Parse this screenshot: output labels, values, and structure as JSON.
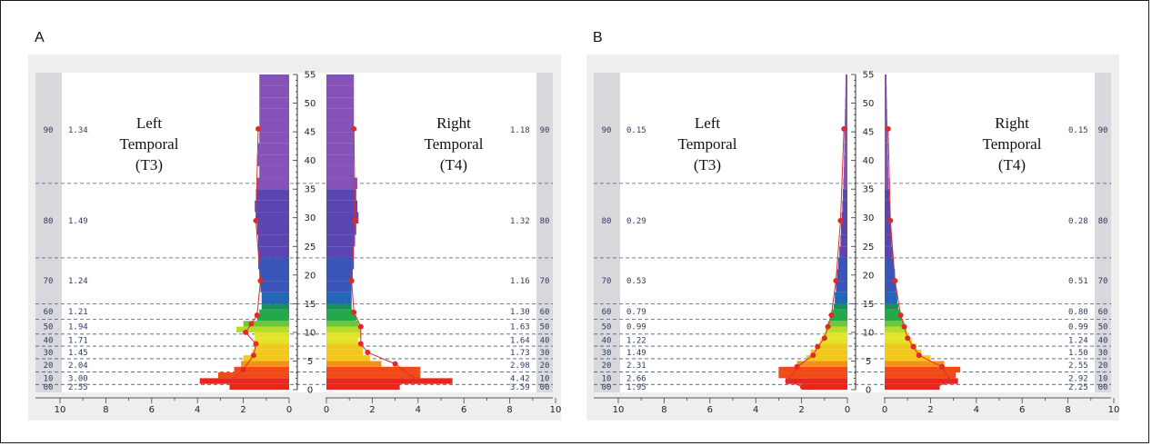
{
  "panels": [
    {
      "letter": "A"
    },
    {
      "letter": "B"
    }
  ],
  "chart_data": [
    {
      "type": "bar",
      "panel": "A",
      "orientation": "horizontal-mirrored",
      "y_axis": {
        "range": [
          0,
          55
        ],
        "tick_labels": [
          "0",
          "5",
          "10",
          "15",
          "20",
          "25",
          "30",
          "35",
          "40",
          "45",
          "50",
          "55"
        ]
      },
      "x_axis": {
        "range": [
          0,
          10
        ],
        "tick_labels": [
          "10",
          "8",
          "6",
          "4",
          "2",
          "0",
          "0",
          "2",
          "4",
          "6",
          "8",
          "10"
        ]
      },
      "percentile_bands": [
        {
          "label": "90",
          "y_from": 36,
          "y_to": 55
        },
        {
          "label": "80",
          "y_from": 23,
          "y_to": 36
        },
        {
          "label": "70",
          "y_from": 15,
          "y_to": 23
        },
        {
          "label": "60",
          "y_from": 12.3,
          "y_to": 15
        },
        {
          "label": "50",
          "y_from": 9.7,
          "y_to": 12.3
        },
        {
          "label": "40",
          "y_from": 7.6,
          "y_to": 9.7
        },
        {
          "label": "30",
          "y_from": 5.4,
          "y_to": 7.6
        },
        {
          "label": "20",
          "y_from": 3.1,
          "y_to": 5.4
        },
        {
          "label": "10",
          "y_from": 0.9,
          "y_to": 3.1
        },
        {
          "label": "00",
          "y_from": 0,
          "y_to": 0.9
        }
      ],
      "sides": [
        {
          "side": "left",
          "label_lines": [
            "Left",
            "Temporal",
            "(T3)"
          ],
          "band_values": [
            "1.34",
            "1.49",
            "1.24",
            "1.21",
            "1.94",
            "1.71",
            "1.45",
            "2.04",
            "3.00",
            "2.55"
          ],
          "bars": [
            [
              0.5,
              2.6
            ],
            [
              1.5,
              3.9
            ],
            [
              2.5,
              3.1
            ],
            [
              3.5,
              2.4
            ],
            [
              4.5,
              2.1
            ],
            [
              5.5,
              2.0
            ],
            [
              6.5,
              1.6
            ],
            [
              7.5,
              1.5
            ],
            [
              8.5,
              1.5
            ],
            [
              9.5,
              1.5
            ],
            [
              10.5,
              2.3
            ],
            [
              11.5,
              2.0
            ],
            [
              12.5,
              1.4
            ],
            [
              13.5,
              1.3
            ],
            [
              14.5,
              1.2
            ],
            [
              16,
              1.2
            ],
            [
              18,
              1.25
            ],
            [
              20,
              1.3
            ],
            [
              22,
              1.35
            ],
            [
              24,
              1.35
            ],
            [
              26,
              1.35
            ],
            [
              28,
              1.4
            ],
            [
              30,
              1.45
            ],
            [
              32,
              1.5
            ],
            [
              34,
              1.45
            ],
            [
              36,
              1.4
            ],
            [
              38,
              1.3
            ],
            [
              40,
              1.4
            ],
            [
              42,
              1.35
            ],
            [
              44,
              1.3
            ],
            [
              46,
              1.3
            ],
            [
              48,
              1.3
            ],
            [
              50,
              1.3
            ],
            [
              52,
              1.3
            ],
            [
              54,
              1.3
            ]
          ],
          "points": [
            [
              1.5,
              2.55
            ],
            [
              3.5,
              2.0
            ],
            [
              6,
              1.55
            ],
            [
              8,
              1.45
            ],
            [
              10,
              1.9
            ],
            [
              11.5,
              1.65
            ],
            [
              13,
              1.4
            ],
            [
              19,
              1.25
            ],
            [
              29.5,
              1.45
            ],
            [
              45.5,
              1.35
            ]
          ]
        },
        {
          "side": "right",
          "label_lines": [
            "Right",
            "Temporal",
            "(T4)"
          ],
          "band_values": [
            "1.18",
            "1.32",
            "1.16",
            "1.30",
            "1.63",
            "1.64",
            "1.73",
            "2.98",
            "4.42",
            "3.59"
          ],
          "bars": [
            [
              0.5,
              3.2
            ],
            [
              1.5,
              5.5
            ],
            [
              2.5,
              4.1
            ],
            [
              3.5,
              4.1
            ],
            [
              4.5,
              2.4
            ],
            [
              5.5,
              1.9
            ],
            [
              6.5,
              1.6
            ],
            [
              7.5,
              1.6
            ],
            [
              8.5,
              1.4
            ],
            [
              9.5,
              1.5
            ],
            [
              10.5,
              1.5
            ],
            [
              11.5,
              1.4
            ],
            [
              12.5,
              1.3
            ],
            [
              13.5,
              1.2
            ],
            [
              14.5,
              1.1
            ],
            [
              16,
              1.1
            ],
            [
              18,
              1.1
            ],
            [
              20,
              1.15
            ],
            [
              22,
              1.2
            ],
            [
              24,
              1.2
            ],
            [
              26,
              1.25
            ],
            [
              28,
              1.3
            ],
            [
              30,
              1.4
            ],
            [
              32,
              1.35
            ],
            [
              34,
              1.3
            ],
            [
              36,
              1.35
            ],
            [
              38,
              1.2
            ],
            [
              40,
              1.2
            ],
            [
              42,
              1.2
            ],
            [
              44,
              1.2
            ],
            [
              46,
              1.2
            ],
            [
              48,
              1.2
            ],
            [
              50,
              1.2
            ],
            [
              52,
              1.2
            ],
            [
              54,
              1.2
            ]
          ],
          "points": [
            [
              1.5,
              4.0
            ],
            [
              4.5,
              3.0
            ],
            [
              6.5,
              1.8
            ],
            [
              8,
              1.5
            ],
            [
              11,
              1.5
            ],
            [
              13.5,
              1.2
            ],
            [
              19,
              1.1
            ],
            [
              29.5,
              1.25
            ],
            [
              45.5,
              1.2
            ]
          ]
        }
      ]
    },
    {
      "type": "bar",
      "panel": "B",
      "orientation": "horizontal-mirrored",
      "y_axis": {
        "range": [
          0,
          55
        ],
        "tick_labels": [
          "0",
          "5",
          "10",
          "15",
          "20",
          "25",
          "30",
          "35",
          "40",
          "45",
          "50",
          "55"
        ]
      },
      "x_axis": {
        "range": [
          0,
          10
        ],
        "tick_labels": [
          "10",
          "8",
          "6",
          "4",
          "2",
          "0",
          "0",
          "2",
          "4",
          "6",
          "8",
          "10"
        ]
      },
      "percentile_bands": [
        {
          "label": "90",
          "y_from": 36,
          "y_to": 55
        },
        {
          "label": "80",
          "y_from": 23,
          "y_to": 36
        },
        {
          "label": "70",
          "y_from": 15,
          "y_to": 23
        },
        {
          "label": "60",
          "y_from": 12.3,
          "y_to": 15
        },
        {
          "label": "50",
          "y_from": 9.7,
          "y_to": 12.3
        },
        {
          "label": "40",
          "y_from": 7.6,
          "y_to": 9.7
        },
        {
          "label": "30",
          "y_from": 5.4,
          "y_to": 7.6
        },
        {
          "label": "20",
          "y_from": 3.1,
          "y_to": 5.4
        },
        {
          "label": "10",
          "y_from": 0.9,
          "y_to": 3.1
        },
        {
          "label": "00",
          "y_from": 0,
          "y_to": 0.9
        }
      ],
      "sides": [
        {
          "side": "left",
          "label_lines": [
            "Left",
            "Temporal",
            "(T3)"
          ],
          "band_values": [
            "0.15",
            "0.29",
            "0.53",
            "0.79",
            "0.99",
            "1.22",
            "1.49",
            "2.31",
            "2.66",
            "1.95"
          ],
          "bars": [
            [
              0.5,
              2.0
            ],
            [
              1.5,
              2.7
            ],
            [
              2.5,
              3.0
            ],
            [
              3.5,
              3.0
            ],
            [
              4.5,
              2.2
            ],
            [
              5.5,
              1.8
            ],
            [
              6.5,
              1.6
            ],
            [
              7.5,
              1.4
            ],
            [
              8.5,
              1.2
            ],
            [
              9.5,
              1.05
            ],
            [
              10.5,
              0.95
            ],
            [
              11.5,
              0.85
            ],
            [
              12.5,
              0.75
            ],
            [
              13.5,
              0.65
            ],
            [
              14.5,
              0.6
            ],
            [
              16,
              0.55
            ],
            [
              18,
              0.5
            ],
            [
              20,
              0.45
            ],
            [
              22,
              0.4
            ],
            [
              24,
              0.35
            ],
            [
              26,
              0.3
            ],
            [
              28,
              0.28
            ],
            [
              30,
              0.25
            ],
            [
              32,
              0.22
            ],
            [
              34,
              0.2
            ],
            [
              36,
              0.18
            ],
            [
              38,
              0.16
            ],
            [
              40,
              0.15
            ],
            [
              42,
              0.14
            ],
            [
              44,
              0.13
            ],
            [
              46,
              0.12
            ],
            [
              48,
              0.11
            ],
            [
              50,
              0.1
            ],
            [
              52,
              0.09
            ],
            [
              54,
              0.08
            ]
          ],
          "points": [
            [
              0.5,
              1.95
            ],
            [
              1.5,
              2.6
            ],
            [
              4,
              2.2
            ],
            [
              6,
              1.5
            ],
            [
              7.5,
              1.3
            ],
            [
              9,
              1.0
            ],
            [
              11,
              0.85
            ],
            [
              13,
              0.7
            ],
            [
              19,
              0.5
            ],
            [
              29.5,
              0.3
            ],
            [
              45.5,
              0.15
            ]
          ]
        },
        {
          "side": "right",
          "label_lines": [
            "Right",
            "Temporal",
            "(T4)"
          ],
          "band_values": [
            "0.15",
            "0.28",
            "0.51",
            "0.80",
            "0.99",
            "1.24",
            "1.50",
            "2.55",
            "2.92",
            "2.25"
          ],
          "bars": [
            [
              0.5,
              2.4
            ],
            [
              1.5,
              3.2
            ],
            [
              2.5,
              3.1
            ],
            [
              3.5,
              3.3
            ],
            [
              4.5,
              2.6
            ],
            [
              5.5,
              2.0
            ],
            [
              6.5,
              1.6
            ],
            [
              7.5,
              1.4
            ],
            [
              8.5,
              1.2
            ],
            [
              9.5,
              1.05
            ],
            [
              10.5,
              0.95
            ],
            [
              11.5,
              0.85
            ],
            [
              12.5,
              0.75
            ],
            [
              13.5,
              0.65
            ],
            [
              14.5,
              0.6
            ],
            [
              16,
              0.55
            ],
            [
              18,
              0.5
            ],
            [
              20,
              0.45
            ],
            [
              22,
              0.4
            ],
            [
              24,
              0.35
            ],
            [
              26,
              0.3
            ],
            [
              28,
              0.28
            ],
            [
              30,
              0.25
            ],
            [
              32,
              0.22
            ],
            [
              34,
              0.2
            ],
            [
              36,
              0.18
            ],
            [
              38,
              0.16
            ],
            [
              40,
              0.15
            ],
            [
              42,
              0.14
            ],
            [
              44,
              0.13
            ],
            [
              46,
              0.12
            ],
            [
              48,
              0.11
            ],
            [
              50,
              0.1
            ],
            [
              52,
              0.09
            ],
            [
              54,
              0.08
            ]
          ],
          "points": [
            [
              0.5,
              2.25
            ],
            [
              1.5,
              2.9
            ],
            [
              4,
              2.5
            ],
            [
              6,
              1.5
            ],
            [
              7.5,
              1.25
            ],
            [
              9,
              1.0
            ],
            [
              11,
              0.85
            ],
            [
              13,
              0.7
            ],
            [
              19,
              0.45
            ],
            [
              29.5,
              0.25
            ],
            [
              45.5,
              0.15
            ]
          ]
        }
      ]
    }
  ]
}
